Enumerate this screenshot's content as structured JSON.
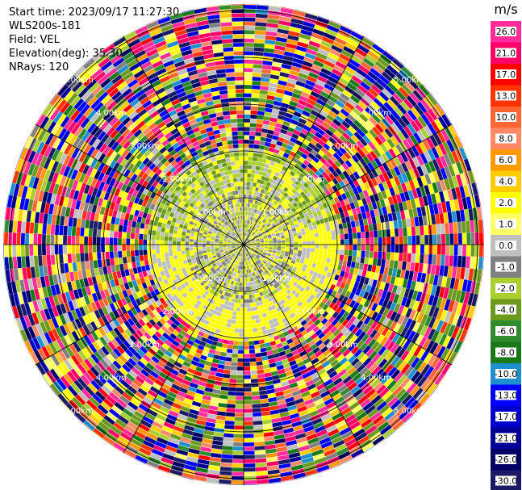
{
  "info": {
    "start_time": "Start time: 2023/09/17 11:27:30",
    "instrument": "WLS200s-181",
    "field": "Field: VEL",
    "elevation": "Elevation(deg): 35.30",
    "nrays": "NRays: 120"
  },
  "colorbar": {
    "unit": "m/s",
    "ticks": [
      "26.0",
      "21.0",
      "17.0",
      "13.0",
      "10.0",
      "8.0",
      "6.0",
      "4.0",
      "2.0",
      "1.0",
      "0.0",
      "-1.0",
      "-2.0",
      "-4.0",
      "-6.0",
      "-8.0",
      "-10.0",
      "-13.0",
      "-17.0",
      "-21.0",
      "-26.0",
      "-30.0"
    ],
    "colors": [
      "#ff2d9b",
      "#ff0066",
      "#ff0000",
      "#ff3300",
      "#ff6633",
      "#ff8866",
      "#ff9900",
      "#ffcc00",
      "#ffff00",
      "#ffff66",
      "#bfbfbf",
      "#808080",
      "#aad030",
      "#6b9a1e",
      "#2e8b2e",
      "#1a7a1a",
      "#1e90d0",
      "#0000ff",
      "#0000cc",
      "#000099",
      "#000066",
      "#1a1a66"
    ]
  },
  "chart_data": {
    "type": "ppi",
    "field": "VEL",
    "unit": "m/s",
    "nrays": 120,
    "elevation_deg": 35.3,
    "range_rings_km": [
      1.0,
      2.0,
      3.0,
      4.0,
      5.0
    ],
    "range_ring_labels": [
      "1.00km",
      "2.00km",
      "3.00km",
      "4.00km",
      "5.00km"
    ],
    "velocity_bands": [
      {
        "range_km": [
          0.0,
          1.2
        ],
        "dominant_values": [
          0.0,
          -1.0,
          -2.0,
          2.0
        ]
      },
      {
        "range_km": [
          1.2,
          2.0
        ],
        "dominant_values": [
          2.0,
          -2.0,
          0.0,
          -4.0
        ]
      },
      {
        "range_km": [
          2.0,
          5.5
        ],
        "dominant_values": [
          -30.0,
          26.0,
          21.0,
          -13.0,
          2.0,
          -4.0
        ]
      }
    ],
    "grid": true
  }
}
